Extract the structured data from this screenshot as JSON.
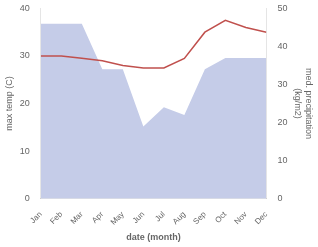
{
  "chart_data": {
    "type": "line",
    "categories": [
      "Jan",
      "Feb",
      "Mar",
      "Apr",
      "May",
      "Jun",
      "Jul",
      "Aug",
      "Sep",
      "Oct",
      "Nov",
      "Dec"
    ],
    "series": [
      {
        "type": "area",
        "axis": "y2",
        "color": "#c5cce8",
        "values": [
          46,
          46,
          46,
          34,
          34,
          19,
          24,
          22,
          34,
          37,
          37,
          37
        ]
      },
      {
        "type": "line",
        "color": "#c0504d",
        "values": [
          30.0,
          30.0,
          29.5,
          29.0,
          28.0,
          27.5,
          27.5,
          29.5,
          35.0,
          37.5,
          36.0,
          35.0
        ]
      }
    ],
    "xlabel": "date (month)",
    "ylabel": "max temp (C)",
    "y2label": "med. precipitation\n(kg/m2)",
    "ylim": [
      0,
      40
    ],
    "yticks": [
      0,
      10,
      20,
      30,
      40
    ],
    "y2lim": [
      0,
      50
    ],
    "y2ticks": [
      0,
      10,
      20,
      30,
      40,
      50
    ],
    "grid": false
  }
}
